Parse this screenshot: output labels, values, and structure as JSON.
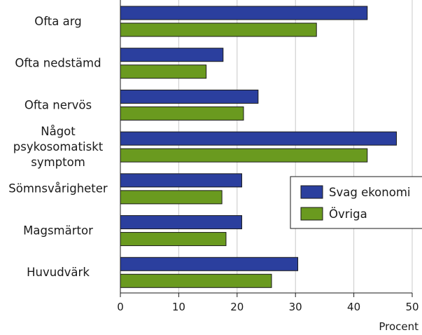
{
  "chart_data": {
    "type": "bar",
    "orientation": "horizontal",
    "categories": [
      [
        "Ofta arg"
      ],
      [
        "Ofta nedstämd"
      ],
      [
        "Ofta nervös"
      ],
      [
        "Något",
        "psykosomatiskt",
        "symptom"
      ],
      [
        "Sömnsvårigheter"
      ],
      [
        "Magsmärtor"
      ],
      [
        "Huvudvärk"
      ]
    ],
    "series": [
      {
        "name": "Svag ekonomi",
        "color": "#2b3f9e",
        "values": [
          42.3,
          17.6,
          23.6,
          47.3,
          20.8,
          20.8,
          30.4
        ]
      },
      {
        "name": "Övriga",
        "color": "#6a9a1f",
        "values": [
          33.6,
          14.7,
          21.1,
          42.3,
          17.4,
          18.1,
          25.9
        ]
      }
    ],
    "xlabel": "Procent",
    "xlim": [
      0,
      50
    ],
    "xticks": [
      "0",
      "10",
      "20",
      "30",
      "40",
      "50"
    ],
    "grid": true,
    "legend": "right"
  }
}
